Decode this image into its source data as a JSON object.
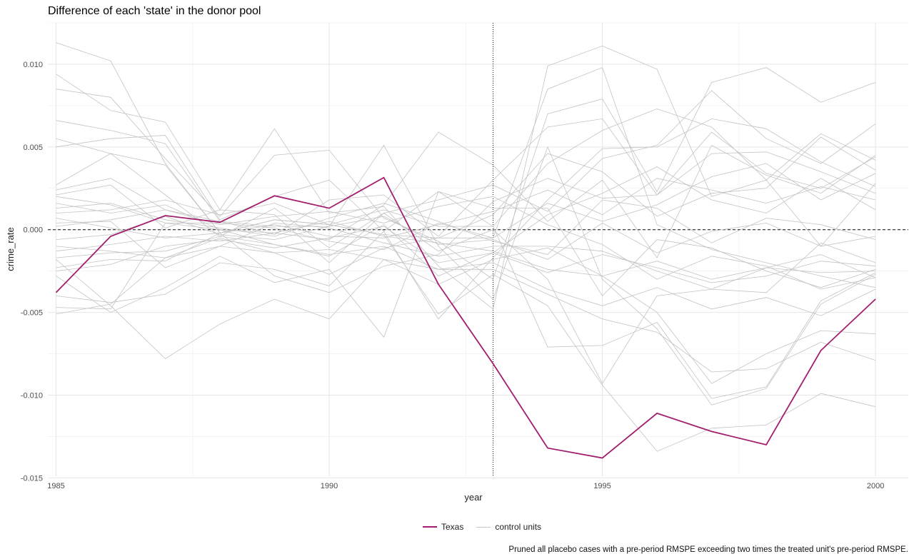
{
  "chart_data": {
    "type": "line",
    "title": "Difference of each 'state' in the donor pool",
    "xlabel": "year",
    "ylabel": "crime_rate",
    "xlim": [
      1984.85,
      2000.6
    ],
    "ylim": [
      -0.0149,
      0.0125
    ],
    "x_ticks": [
      "1985",
      "1990",
      "1995",
      "2000"
    ],
    "y_ticks": [
      "-0.015",
      "-0.010",
      "-0.005",
      "0.000",
      "0.005",
      "0.010"
    ],
    "grid": true,
    "legend_position": "bottom",
    "reference_lines": {
      "horizontal_y": 0,
      "vertical_x": 1993
    },
    "caption": "Pruned all placebo cases with a pre-period RMSPE exceeding two times the treated unit's pre-period RMSPE.",
    "x": [
      1985,
      1986,
      1987,
      1988,
      1989,
      1990,
      1991,
      1992,
      1993,
      1994,
      1995,
      1996,
      1997,
      1998,
      1999,
      2000
    ],
    "series": [
      {
        "name": "Texas",
        "color": "#a21f6e",
        "values": [
          -0.0038,
          -0.0004,
          0.00085,
          0.00045,
          0.00205,
          0.0013,
          0.00315,
          -0.0033,
          -0.0081,
          -0.0132,
          -0.0138,
          -0.0111,
          -0.0122,
          -0.013,
          -0.0073,
          -0.0042
        ]
      },
      {
        "name": "control units",
        "color": "#c3c3c3",
        "lines": [
          [
            0.0113,
            0.0102,
            0.004,
            -0.0002,
            0.0006,
            0.0003,
            -0.0003,
            -0.0005,
            -0.0005,
            0.0085,
            0.0098,
            0.0003,
            -0.0012,
            -0.002,
            -0.0028,
            -0.0035
          ],
          [
            0.0094,
            0.0072,
            0.0065,
            0.0012,
            0.0061,
            0.001,
            0.0014,
            -0.0022,
            -0.0048,
            0.0099,
            0.0111,
            0.0097,
            0.002,
            0.003,
            -0.001,
            0.0028
          ],
          [
            0.0085,
            0.008,
            0.0043,
            0.0008,
            0.0045,
            0.0048,
            0.0007,
            -0.0007,
            -0.003,
            0.007,
            0.0079,
            0.0023,
            0.0089,
            0.0098,
            0.0077,
            0.0089
          ],
          [
            0.0066,
            0.006,
            0.0052,
            0.0005,
            0.0002,
            0.0002,
            0.0051,
            -0.001,
            -0.0042,
            0.005,
            -0.003,
            -0.006,
            -0.0106,
            -0.0096,
            -0.0045,
            -0.0027
          ],
          [
            0.005,
            0.0055,
            0.0057,
            0.0006,
            0.002,
            0.003,
            -0.0001,
            0.0023,
            0.0002,
            -0.0071,
            -0.007,
            -0.0056,
            -0.0102,
            -0.0095,
            -0.0043,
            -0.0026
          ],
          [
            0.0055,
            0.0046,
            0.0021,
            -0.0004,
            0.0013,
            -0.0011,
            0.001,
            -0.0013,
            0.0,
            -0.003,
            -0.0093,
            -0.004,
            -0.0036,
            -0.0023,
            -0.0026,
            -0.0025
          ],
          [
            0.0027,
            0.0046,
            0.0039,
            -0.0002,
            0.0006,
            0.0003,
            -0.0003,
            -0.0051,
            -0.0027,
            -0.0046,
            -0.0094,
            -0.0134,
            -0.012,
            -0.0118,
            -0.0099,
            -0.0107
          ],
          [
            0.0024,
            0.0031,
            0.0012,
            0.0005,
            -0.0003,
            0.0018,
            0.0021,
            -0.0004,
            0.003,
            0.0062,
            0.0067,
            0.0021,
            0.0046,
            0.0047,
            0.0035,
            0.0022
          ],
          [
            0.0021,
            0.0027,
            0.0001,
            0.0012,
            0.0009,
            -0.002,
            0.001,
            0.0018,
            0.0027,
            0.0011,
            0.0043,
            0.0051,
            0.0084,
            0.0055,
            0.004,
            0.0064
          ],
          [
            0.0016,
            0.001,
            0.0015,
            0.0,
            -0.0002,
            -0.0006,
            0.0015,
            0.0059,
            0.0039,
            0.0005,
            0.003,
            -0.0017,
            0.0051,
            0.0033,
            0.0022,
            0.0045
          ],
          [
            0.0004,
            0.0005,
            -0.0023,
            -0.001,
            0.0004,
            0.0001,
            -0.0008,
            -0.0016,
            -0.001,
            -0.001,
            -0.0013,
            -0.0025,
            -0.0036,
            -0.0038,
            -0.0008,
            -0.002
          ],
          [
            -0.001,
            -0.0013,
            -0.0017,
            -0.0005,
            -0.0014,
            -0.0012,
            -0.0018,
            -0.0024,
            -0.0024,
            -0.0039,
            -0.0054,
            -0.0062,
            -0.0086,
            -0.0084,
            -0.0068,
            -0.0079
          ],
          [
            -0.0018,
            -0.0046,
            -0.0078,
            -0.0057,
            -0.0042,
            -0.0054,
            -0.0018,
            -0.0033,
            -0.0018,
            -0.0011,
            -0.0028,
            -0.005,
            -0.0093,
            -0.0075,
            -0.0061,
            -0.0063
          ],
          [
            -0.0028,
            -0.005,
            -0.0035,
            -0.0016,
            -0.0032,
            -0.0024,
            -0.0065,
            0.0023,
            0.0013,
            0.0013,
            -0.004,
            -0.0006,
            -0.0011,
            -0.0025,
            -0.0035,
            -0.0024
          ],
          [
            -0.004,
            -0.0044,
            -0.0039,
            -0.002,
            -0.0024,
            -0.0034,
            -0.0001,
            -0.0054,
            -0.0017,
            0.0018,
            0.0049,
            0.005,
            0.0067,
            0.0061,
            0.0041,
            0.0026
          ],
          [
            -0.0047,
            -0.0048,
            0.0004,
            0.0,
            -0.0009,
            -0.0016,
            0.0003,
            -0.0028,
            -0.0014,
            -0.0026,
            -0.0015,
            -0.0023,
            -0.0032,
            -0.0028,
            -0.0019,
            -0.0022
          ],
          [
            -0.0051,
            -0.0045,
            -0.0017,
            -0.001,
            -0.0014,
            -0.0027,
            -0.0011,
            -0.0005,
            0.0009,
            0.0046,
            0.0035,
            0.0008,
            0.0022,
            0.0025,
            0.0056,
            0.0036
          ],
          [
            -0.0023,
            -0.0018,
            -0.0019,
            -0.0002,
            -0.0028,
            -0.0038,
            -0.0022,
            -0.0015,
            0.0017,
            0.0031,
            0.0019,
            0.0021,
            0.0059,
            0.0034,
            0.0025,
            0.0044
          ],
          [
            0.001,
            0.0012,
            0.0018,
            0.0009,
            0.0016,
            0.0003,
            0.0012,
            0.0002,
            0.0002,
            0.004,
            0.006,
            0.0073,
            0.0062,
            0.003,
            0.0058,
            0.0042
          ],
          [
            -0.0006,
            -0.0003,
            0.0008,
            -0.0003,
            -0.0006,
            0.0002,
            0.0008,
            -0.0009,
            -0.0006,
            -0.0018,
            0.0004,
            -0.0014,
            -0.0001,
            0.0004,
            -0.001,
            -0.0004
          ],
          [
            0.0007,
            0.0001,
            -0.0005,
            -0.0002,
            0.0003,
            -0.0004,
            -0.0005,
            0.0003,
            0.0011,
            0.0024,
            0.0009,
            0.0031,
            0.0024,
            0.0016,
            0.0026,
            0.0018
          ],
          [
            -0.0013,
            -0.0009,
            -0.0004,
            -0.0007,
            -0.0002,
            0.0005,
            -0.0004,
            -0.0008,
            -0.0013,
            -0.0024,
            -0.0028,
            -0.0019,
            -0.003,
            -0.0023,
            -0.0015,
            -0.0029
          ],
          [
            0.0002,
            0.0006,
            0.0012,
            0.0003,
            0.0008,
            0.0011,
            0.0004,
            0.0014,
            0.002,
            0.0003,
            -0.0009,
            -0.003,
            -0.0016,
            -0.0022,
            -0.0036,
            -0.0029
          ],
          [
            -0.0025,
            -0.0021,
            -0.001,
            -0.0006,
            -0.0011,
            -0.0005,
            0.0002,
            -0.002,
            -0.0014,
            0.0009,
            0.0022,
            0.0038,
            0.0018,
            0.001,
            0.0031,
            0.0012
          ],
          [
            0.0013,
            0.0016,
            0.0006,
            0.0001,
            -0.0004,
            0.0007,
            0.0016,
            0.0005,
            -0.0007,
            -0.0015,
            0.0018,
            0.0013,
            -0.0008,
            0.0007,
            0.0003,
            -0.0006
          ],
          [
            -0.0017,
            -0.0014,
            -0.0013,
            -0.0004,
            -0.0009,
            -0.0015,
            -0.001,
            -0.0024,
            -0.002,
            -0.0036,
            -0.0046,
            -0.0035,
            -0.0048,
            -0.0041,
            -0.0052,
            -0.0036
          ],
          [
            0.002,
            0.0015,
            0.0004,
            0.0004,
            0.0001,
            -0.0007,
            -0.0012,
            0.0004,
            -0.0005,
            0.0016,
            0.0005,
            0.0015,
            0.0032,
            0.004,
            0.0018,
            0.0034
          ]
        ]
      }
    ]
  }
}
